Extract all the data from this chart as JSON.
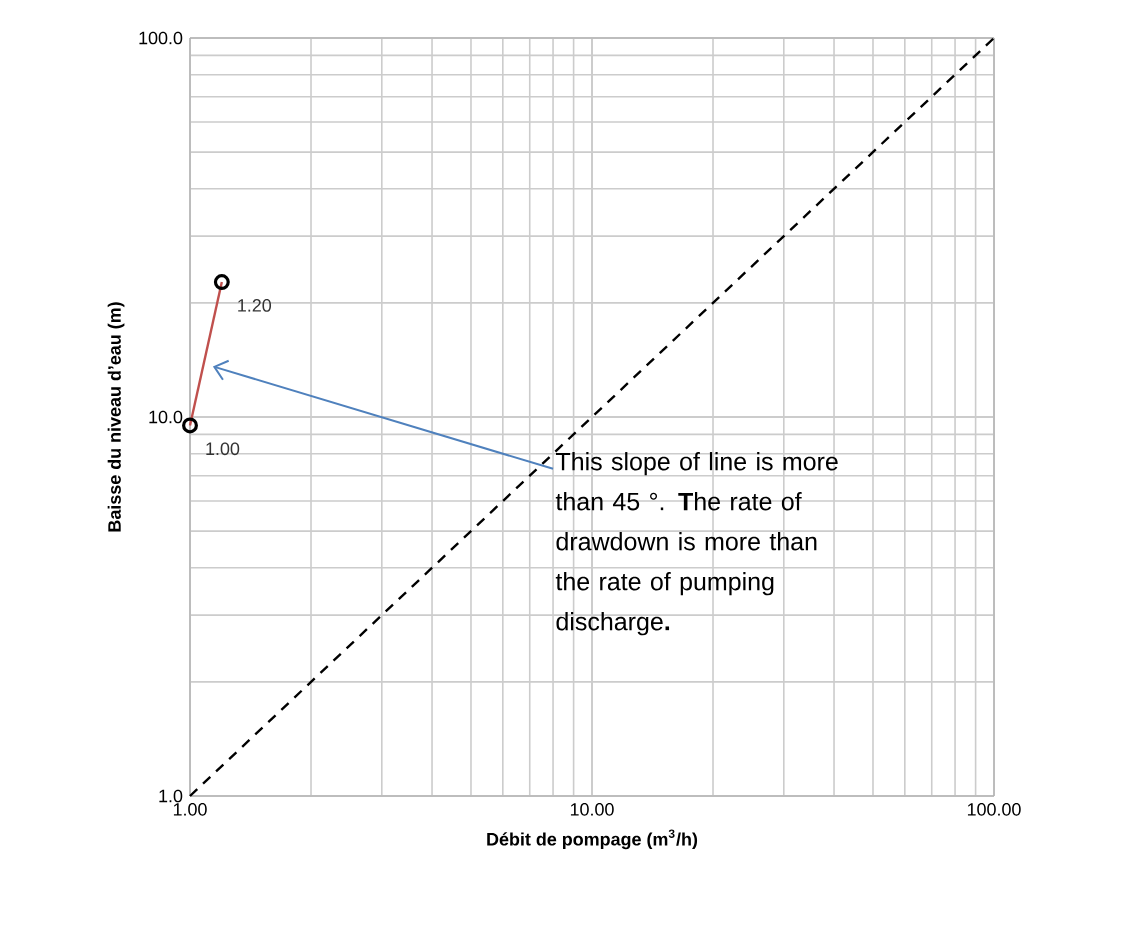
{
  "chart_data": {
    "type": "line",
    "log": "xy",
    "xlabel": "Débit de pompage (m$^{3}$/h)",
    "ylabel": "Baisse du niveau d’eau (m)",
    "xlim": [
      1,
      100
    ],
    "ylim": [
      1,
      100
    ],
    "xticks": [
      {
        "value": 1,
        "label": "1.00"
      },
      {
        "value": 10,
        "label": "10.00"
      },
      {
        "value": 100,
        "label": "100.00"
      }
    ],
    "yticks": [
      {
        "value": 1,
        "label": "1.0"
      },
      {
        "value": 10,
        "label": "10.0"
      },
      {
        "value": 100,
        "label": "100.0"
      }
    ],
    "grid": true,
    "series": [
      {
        "color": "#c0504d",
        "x": [
          1.0,
          1.2
        ],
        "values": [
          9.5,
          22.7
        ],
        "marker": "circle",
        "line_style": "solid"
      },
      {
        "type": "line",
        "color": "#000000",
        "x": [
          1,
          100
        ],
        "values": [
          1,
          100
        ],
        "marker": "none",
        "line_style": "dashed"
      }
    ],
    "annotations": [
      {
        "text": "1.00",
        "x": 1.0,
        "y": 9.5
      },
      {
        "text": "1.20",
        "x": 1.2,
        "y": 22.7
      },
      {
        "text": "This slope of line is more than 45 °. **T**he rate of drawdown is more than the rate of pumping discharge**.**",
        "x": 1.14,
        "y": 13.6
      }
    ]
  }
}
